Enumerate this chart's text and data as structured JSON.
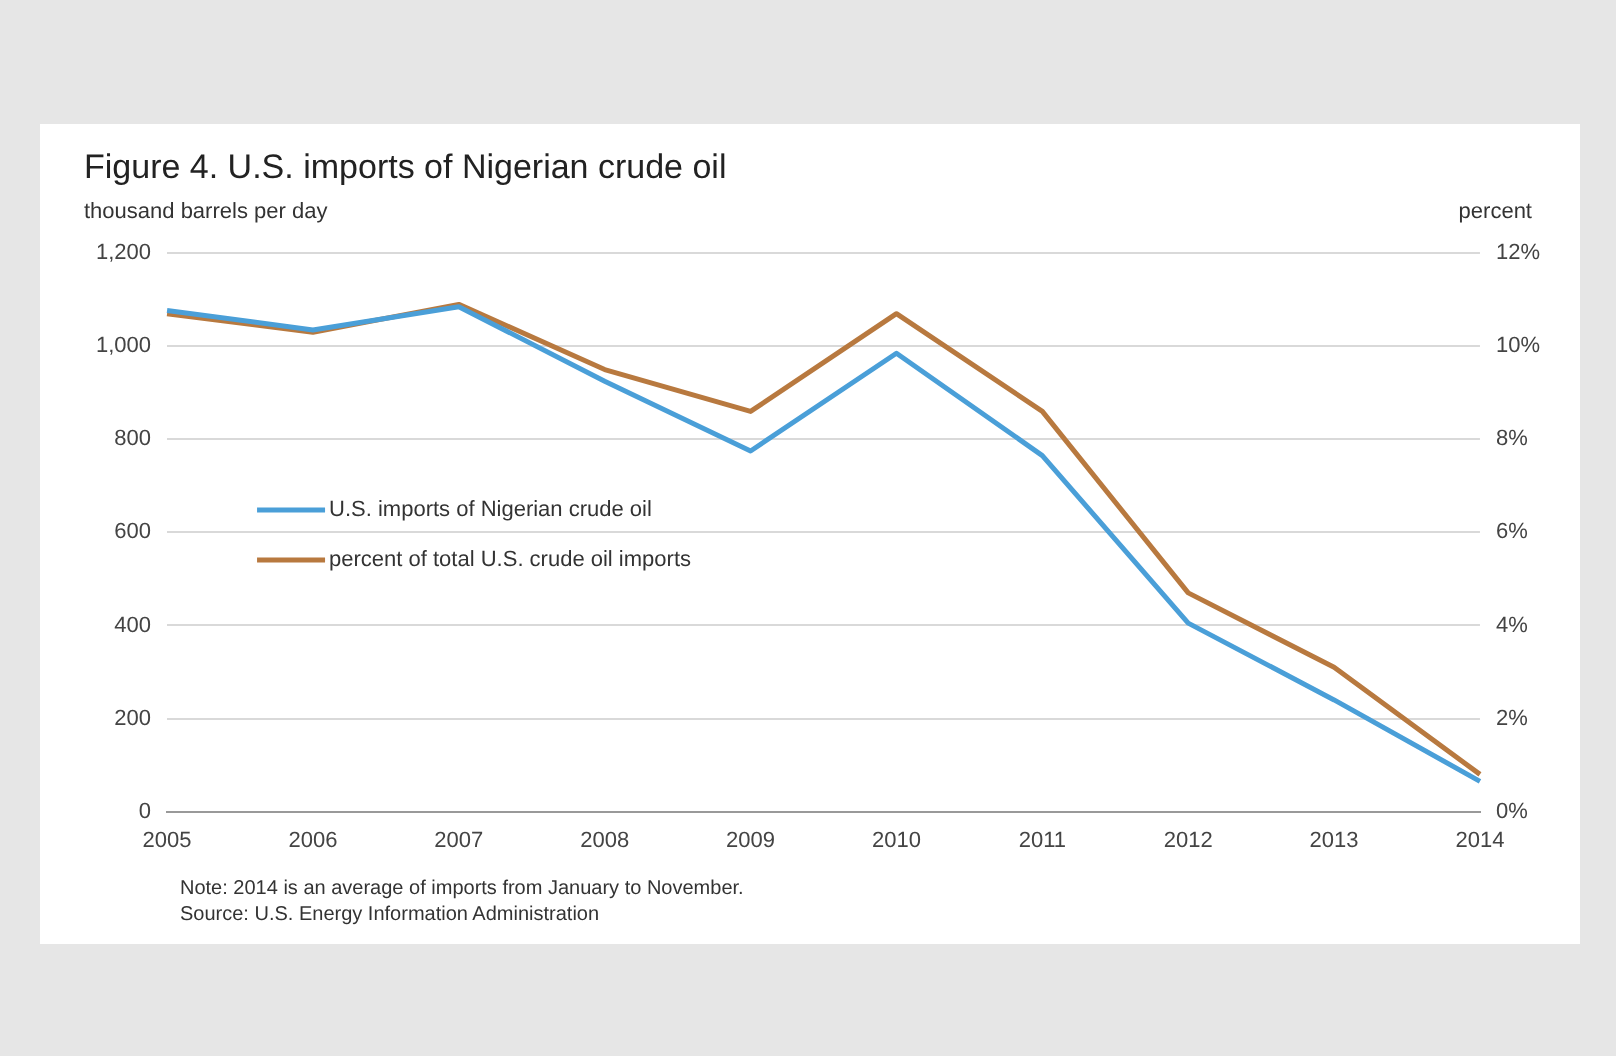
{
  "chart_data": {
    "type": "line",
    "title": "Figure 4. U.S. imports of Nigerian crude oil",
    "ylabel": "thousand barrels per day",
    "y2label": "percent",
    "categories": [
      "2005",
      "2006",
      "2007",
      "2008",
      "2009",
      "2010",
      "2011",
      "2012",
      "2013",
      "2014"
    ],
    "series": [
      {
        "name": "U.S. imports of Nigerian crude oil",
        "color": "#4a9fd8",
        "values": [
          1077,
          1035,
          1085,
          925,
          775,
          985,
          765,
          405,
          240,
          65
        ]
      },
      {
        "name": "percent of total U.S. crude oil imports",
        "color": "#b8793f",
        "axis": "y2",
        "values": [
          10.7,
          10.3,
          10.9,
          9.5,
          8.6,
          10.7,
          8.6,
          4.7,
          3.1,
          0.8
        ]
      }
    ],
    "ylim": [
      0,
      1200
    ],
    "yticks": [
      0,
      200,
      400,
      600,
      800,
      {
        "value": 1000,
        "label": "1,000"
      },
      {
        "value": 1200,
        "label": "1,200"
      }
    ],
    "y2lim": [
      0,
      12
    ],
    "y2ticks": [
      {
        "value": 0,
        "label": "0%"
      },
      {
        "value": 2,
        "label": "2%"
      },
      {
        "value": 4,
        "label": "4%"
      },
      {
        "value": 6,
        "label": "6%"
      },
      {
        "value": 8,
        "label": "8%"
      },
      {
        "value": 10,
        "label": "10%"
      },
      {
        "value": 12,
        "label": "12%"
      }
    ],
    "grid": "y",
    "legend": "left",
    "marker": "none",
    "line_style": "solid",
    "annotations": [
      "Note: 2014 is an average of imports from January to November.",
      "Source: U.S. Energy Information Administration"
    ]
  }
}
